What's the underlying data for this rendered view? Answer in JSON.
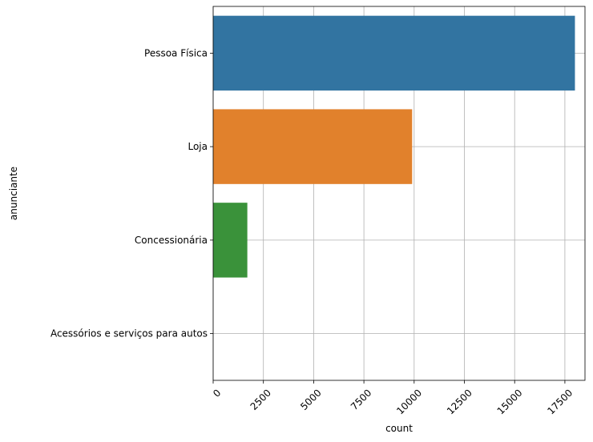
{
  "chart_data": {
    "type": "bar",
    "orientation": "horizontal",
    "categories": [
      "Pessoa Física",
      "Loja",
      "Concessionária",
      "Acessórios e serviços para autos"
    ],
    "values": [
      18000,
      9900,
      1700,
      0
    ],
    "colors": [
      "#3274a1",
      "#e1812c",
      "#3a923a",
      "#c03d3e"
    ],
    "xlabel": "count",
    "ylabel": "anunciante",
    "xlim": [
      0,
      18500
    ],
    "xticks": [
      0,
      2500,
      5000,
      7500,
      10000,
      12500,
      15000,
      17500
    ],
    "xtick_rotation": 45,
    "grid": true,
    "grid_color": "#b0b0b0"
  }
}
